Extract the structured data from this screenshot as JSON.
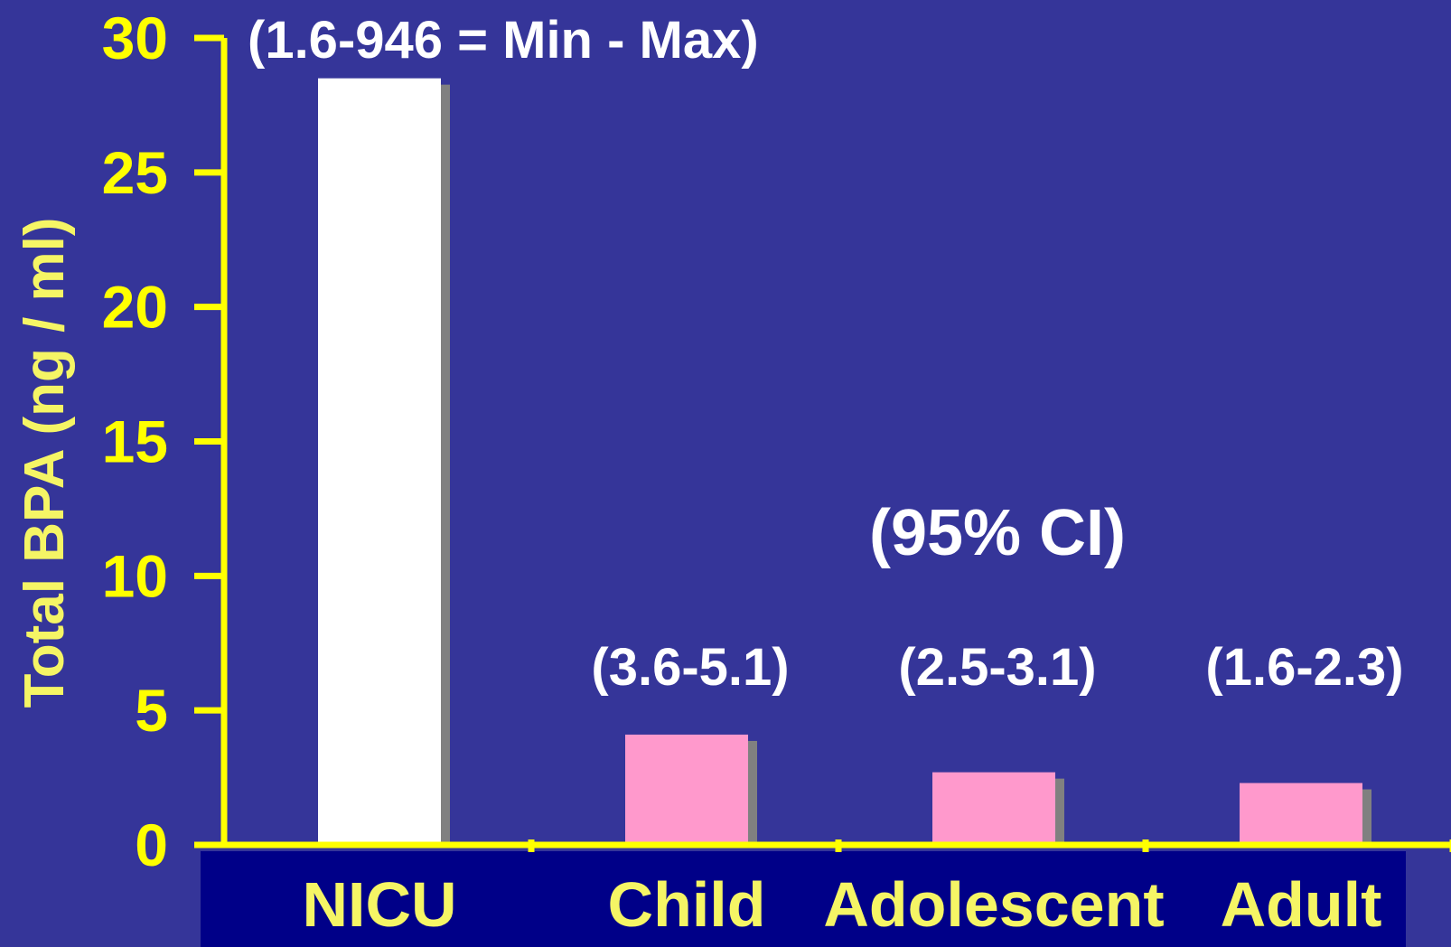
{
  "chart_data": {
    "type": "bar",
    "title": "",
    "xlabel": "",
    "ylabel": "Total BPA (ng / ml)",
    "ylim": [
      0,
      30
    ],
    "yticks": [
      "0",
      "5",
      "10",
      "15",
      "20",
      "25",
      "30"
    ],
    "categories": [
      "NICU",
      "Child",
      "Adolescent",
      "Adult"
    ],
    "values": [
      28.5,
      4.1,
      2.7,
      2.3
    ],
    "bar_colors": [
      "#ffffff",
      "#ff99cc",
      "#ff99cc",
      "#ff99cc"
    ],
    "shadow_color": "#808080",
    "axis_color": "#ffff00",
    "background_color": "#353599",
    "category_band_color": "#000088",
    "bar_annotations": [
      "(1.6-946 = Min - Max)",
      "(3.6-5.1)",
      "(2.5-3.1)",
      "(1.6-2.3)"
    ],
    "annotation_title": "(95% CI)",
    "grid": false
  }
}
